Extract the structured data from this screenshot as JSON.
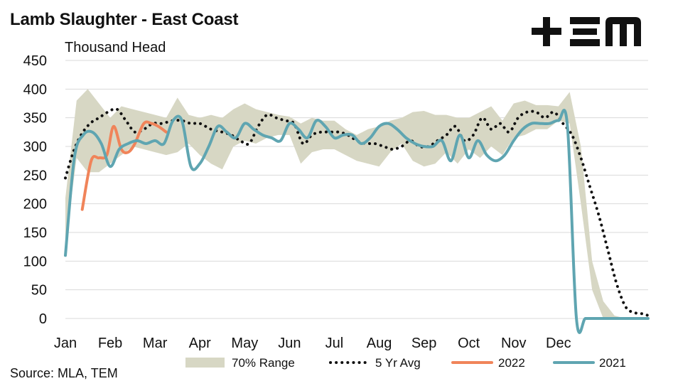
{
  "header": {
    "title": "Lamb Slaughter - East Coast",
    "logo_text": "+ΞM"
  },
  "footer": {
    "source": "Source: MLA, TEM"
  },
  "colors": {
    "range": "#d7d7c4",
    "avg": "#111111",
    "y2022": "#f0845a",
    "y2021": "#5fa5b1",
    "grid": "#d9d9d9"
  },
  "chart_data": {
    "type": "line",
    "title": "Lamb Slaughter - East Coast",
    "ylabel": "Thousand Head",
    "xlabel": "",
    "ylim": [
      0,
      450
    ],
    "yticks": [
      0,
      50,
      100,
      150,
      200,
      250,
      300,
      350,
      400,
      450
    ],
    "xlim": [
      0,
      52
    ],
    "x_tick_labels": [
      "Jan",
      "Feb",
      "Mar",
      "Apr",
      "May",
      "Jun",
      "Jul",
      "Aug",
      "Sep",
      "Oct",
      "Nov",
      "Dec"
    ],
    "x_tick_positions": [
      0,
      4,
      8,
      12,
      16,
      20,
      24,
      28,
      32,
      36,
      40,
      44
    ],
    "grid": "horizontal",
    "legend_position": "bottom",
    "range_band": {
      "name": "70% Range",
      "x": [
        0,
        1,
        2,
        3,
        4,
        5,
        6,
        7,
        8,
        9,
        10,
        11,
        12,
        13,
        14,
        15,
        16,
        17,
        18,
        19,
        20,
        21,
        22,
        23,
        24,
        25,
        26,
        27,
        28,
        29,
        30,
        31,
        32,
        33,
        34,
        35,
        36,
        37,
        38,
        39,
        40,
        41,
        42,
        43,
        44,
        45,
        46,
        47,
        48,
        49,
        50,
        51,
        52
      ],
      "upper": [
        210,
        380,
        400,
        375,
        350,
        370,
        365,
        360,
        355,
        350,
        385,
        355,
        350,
        355,
        350,
        365,
        375,
        365,
        360,
        355,
        352,
        340,
        350,
        345,
        345,
        330,
        320,
        330,
        335,
        345,
        350,
        360,
        362,
        355,
        355,
        350,
        350,
        360,
        370,
        345,
        375,
        380,
        372,
        372,
        370,
        395,
        300,
        100,
        30,
        5,
        0,
        0,
        0
      ],
      "lower": [
        130,
        280,
        255,
        255,
        270,
        285,
        300,
        295,
        290,
        285,
        290,
        305,
        285,
        270,
        260,
        300,
        310,
        305,
        315,
        320,
        320,
        270,
        290,
        295,
        295,
        285,
        275,
        270,
        265,
        290,
        305,
        275,
        265,
        270,
        290,
        270,
        295,
        280,
        300,
        285,
        315,
        320,
        330,
        330,
        345,
        340,
        200,
        50,
        0,
        0,
        0,
        0,
        0
      ]
    },
    "series": [
      {
        "name": "5 Yr Avg",
        "style": "dotted",
        "x": [
          0,
          0.7,
          1.4,
          2.2,
          3,
          3.8,
          4.6,
          5.4,
          6.2,
          7,
          7.8,
          8.6,
          9.6,
          10.4,
          11.2,
          12,
          13,
          14,
          14.8,
          15.6,
          16.4,
          17.2,
          18,
          18.8,
          19.6,
          20.4,
          21.2,
          22,
          22.8,
          23.6,
          24.4,
          25.2,
          26,
          26.8,
          27.6,
          28.4,
          29.2,
          30,
          30.8,
          31.6,
          32.4,
          33.2,
          34,
          34.8,
          35.6,
          36.4,
          37.2,
          38,
          38.8,
          39.6,
          40.4,
          41.2,
          42,
          42.8,
          43.6,
          44.4,
          45.2,
          46,
          46.8,
          47.6,
          48.4,
          49.2,
          50,
          50.8,
          51.6,
          52
        ],
        "values": [
          245,
          290,
          320,
          340,
          350,
          360,
          365,
          345,
          325,
          330,
          340,
          340,
          345,
          345,
          340,
          340,
          330,
          325,
          320,
          310,
          305,
          335,
          355,
          350,
          345,
          340,
          305,
          320,
          325,
          325,
          325,
          320,
          310,
          305,
          305,
          300,
          295,
          300,
          310,
          300,
          300,
          310,
          320,
          335,
          310,
          320,
          350,
          330,
          340,
          325,
          350,
          360,
          360,
          350,
          360,
          340,
          320,
          280,
          230,
          180,
          120,
          60,
          20,
          10,
          8,
          5
        ]
      },
      {
        "name": "2022",
        "x": [
          1.5,
          2.3,
          3,
          3.7,
          4.3,
          5,
          5.6,
          6.2,
          7,
          7.7,
          8.3,
          9
        ],
        "values": [
          190,
          275,
          280,
          285,
          335,
          295,
          290,
          305,
          340,
          340,
          335,
          325
        ]
      },
      {
        "name": "2021",
        "x": [
          0,
          0.8,
          1.6,
          2.4,
          3.2,
          4,
          4.8,
          5.6,
          6.4,
          7.2,
          8,
          8.8,
          9.6,
          10.4,
          11.2,
          12,
          12.8,
          13.6,
          14.4,
          15.2,
          16,
          16.8,
          17.6,
          18.4,
          19.2,
          20,
          20.8,
          21.6,
          22.4,
          23.2,
          24,
          24.8,
          25.6,
          26.4,
          27.2,
          28,
          28.8,
          29.6,
          30.4,
          31.2,
          32,
          32.8,
          33.6,
          34.4,
          35.2,
          36,
          36.8,
          37.6,
          38.4,
          39.2,
          40,
          40.8,
          41.6,
          42.4,
          43.2,
          44,
          44.8,
          45.6,
          46.4,
          47.2,
          48,
          48.8,
          49.6,
          50.4,
          51.2,
          52
        ],
        "values": [
          110,
          280,
          320,
          325,
          305,
          265,
          295,
          305,
          310,
          305,
          310,
          305,
          345,
          345,
          265,
          270,
          300,
          335,
          325,
          315,
          340,
          330,
          320,
          315,
          310,
          340,
          330,
          315,
          345,
          335,
          315,
          320,
          320,
          305,
          315,
          335,
          340,
          330,
          315,
          305,
          300,
          300,
          310,
          275,
          320,
          280,
          310,
          285,
          275,
          285,
          310,
          330,
          340,
          340,
          340,
          345,
          335,
          0,
          0,
          0,
          0,
          0,
          0,
          0,
          0,
          0
        ]
      }
    ],
    "legend": [
      "70% Range",
      "5 Yr Avg",
      "2022",
      "2021"
    ]
  }
}
